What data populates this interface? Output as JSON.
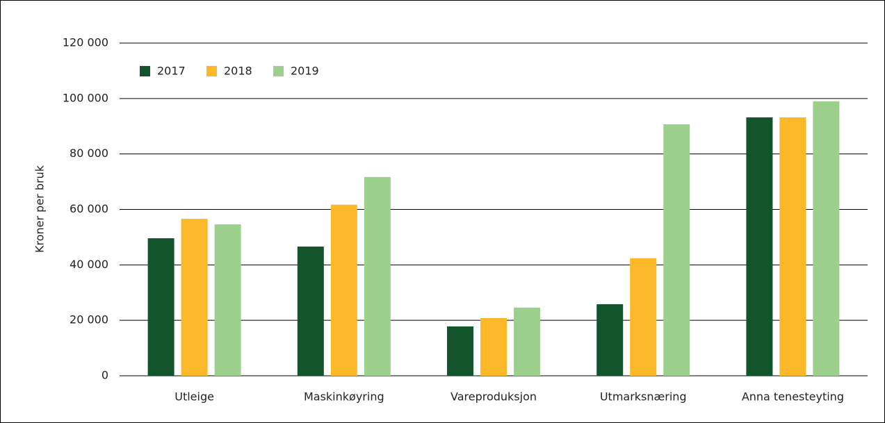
{
  "chart_data": {
    "type": "bar",
    "y_label": "Kroner per bruk",
    "categories": [
      "Utleige",
      "Maskinkøyring",
      "Vareproduksjon",
      "Utmarksnæring",
      "Anna tenesteyting"
    ],
    "series": [
      {
        "name": "2017",
        "color": "#12552d",
        "values": [
          49600,
          46600,
          17800,
          25800,
          93200
        ]
      },
      {
        "name": "2018",
        "color": "#fbb829",
        "values": [
          56600,
          61700,
          20800,
          42400,
          93200
        ]
      },
      {
        "name": "2019",
        "color": "#9dd08d",
        "values": [
          54600,
          71700,
          24600,
          90700,
          99000
        ]
      }
    ],
    "ylim": [
      0,
      120000
    ],
    "yticks": [
      {
        "value": 0,
        "label": "0"
      },
      {
        "value": 20000,
        "label": "20 000"
      },
      {
        "value": 40000,
        "label": "40 000"
      },
      {
        "value": 60000,
        "label": "60 000"
      },
      {
        "value": 80000,
        "label": "80 000"
      },
      {
        "value": 100000,
        "label": "100 000"
      },
      {
        "value": 120000,
        "label": "120 000"
      }
    ],
    "grid": true,
    "legend": "top-left"
  }
}
